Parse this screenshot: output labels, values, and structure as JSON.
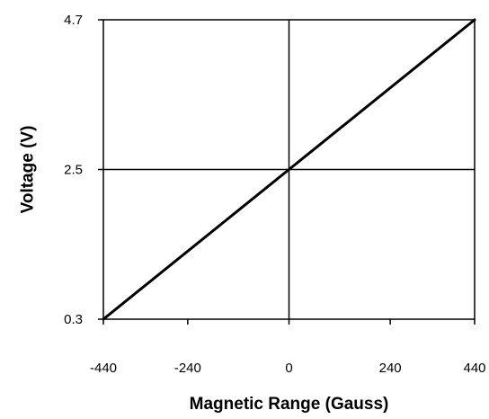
{
  "chart_data": {
    "type": "line",
    "title": "",
    "xlabel": "Magnetic Range (Gauss)",
    "ylabel": "Voltage (V)",
    "xlim": [
      -440,
      440
    ],
    "ylim": [
      0.3,
      4.7
    ],
    "x_ticks": [
      -440,
      -240,
      0,
      240,
      440
    ],
    "x_tick_labels": [
      "-440",
      "-240",
      "0",
      "240",
      "440"
    ],
    "y_ticks": [
      0.3,
      2.5,
      4.7
    ],
    "y_tick_labels": [
      "0.3",
      "2.5",
      "4.7"
    ],
    "grid": false,
    "reference_lines": {
      "x": 0,
      "y": 2.5
    },
    "series": [
      {
        "x": [
          -440,
          440
        ],
        "y": [
          0.3,
          4.7
        ],
        "color": "#000000"
      }
    ]
  }
}
